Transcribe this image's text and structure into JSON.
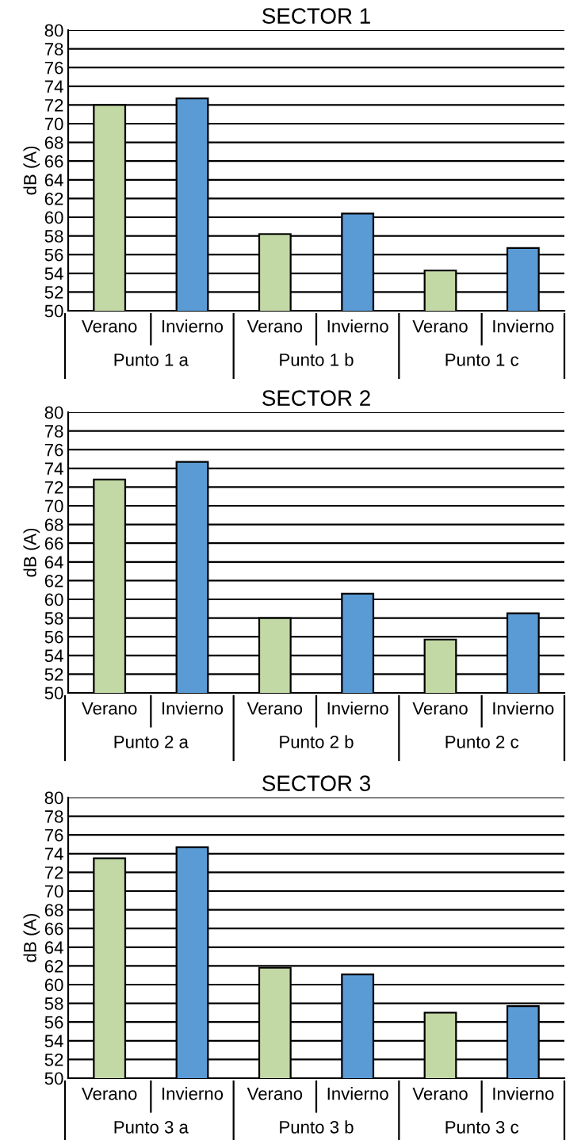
{
  "chart_data": [
    {
      "type": "bar",
      "title": "SECTOR 1",
      "ylabel": "dB (A)",
      "categories": [
        "Verano",
        "Invierno",
        "Verano",
        "Invierno",
        "Verano",
        "Invierno"
      ],
      "values": [
        72.0,
        72.7,
        58.2,
        60.4,
        54.3,
        56.7
      ],
      "colors": [
        "#c3d9a5",
        "#5b9bd5",
        "#c3d9a5",
        "#5b9bd5",
        "#c3d9a5",
        "#5b9bd5"
      ],
      "annotations": [
        "Punto 1 a",
        "Punto 1 b",
        "Punto 1 c"
      ],
      "ylim": [
        50,
        80
      ],
      "yticks": [
        50,
        52,
        54,
        56,
        58,
        60,
        62,
        64,
        66,
        68,
        70,
        72,
        74,
        76,
        78,
        80
      ],
      "grid": "y"
    },
    {
      "type": "bar",
      "title": "SECTOR 2",
      "ylabel": "dB (A)",
      "categories": [
        "Verano",
        "Invierno",
        "Verano",
        "Invierno",
        "Verano",
        "Invierno"
      ],
      "values": [
        72.8,
        74.7,
        58.0,
        60.6,
        55.7,
        58.5
      ],
      "colors": [
        "#c3d9a5",
        "#5b9bd5",
        "#c3d9a5",
        "#5b9bd5",
        "#c3d9a5",
        "#5b9bd5"
      ],
      "annotations": [
        "Punto 2 a",
        "Punto 2 b",
        "Punto 2 c"
      ],
      "ylim": [
        50,
        80
      ],
      "yticks": [
        50,
        52,
        54,
        56,
        58,
        60,
        62,
        64,
        66,
        68,
        70,
        72,
        74,
        76,
        78,
        80
      ],
      "grid": "y"
    },
    {
      "type": "bar",
      "title": "SECTOR 3",
      "ylabel": "dB (A)",
      "categories": [
        "Verano",
        "Invierno",
        "Verano",
        "Invierno",
        "Verano",
        "Invierno"
      ],
      "values": [
        73.5,
        74.7,
        61.8,
        61.1,
        57.0,
        57.7
      ],
      "colors": [
        "#c3d9a5",
        "#5b9bd5",
        "#c3d9a5",
        "#5b9bd5",
        "#c3d9a5",
        "#5b9bd5"
      ],
      "annotations": [
        "Punto 3 a",
        "Punto 3 b",
        "Punto 3 c"
      ],
      "ylim": [
        50,
        80
      ],
      "yticks": [
        50,
        52,
        54,
        56,
        58,
        60,
        62,
        64,
        66,
        68,
        70,
        72,
        74,
        76,
        78,
        80
      ],
      "grid": "y"
    }
  ]
}
